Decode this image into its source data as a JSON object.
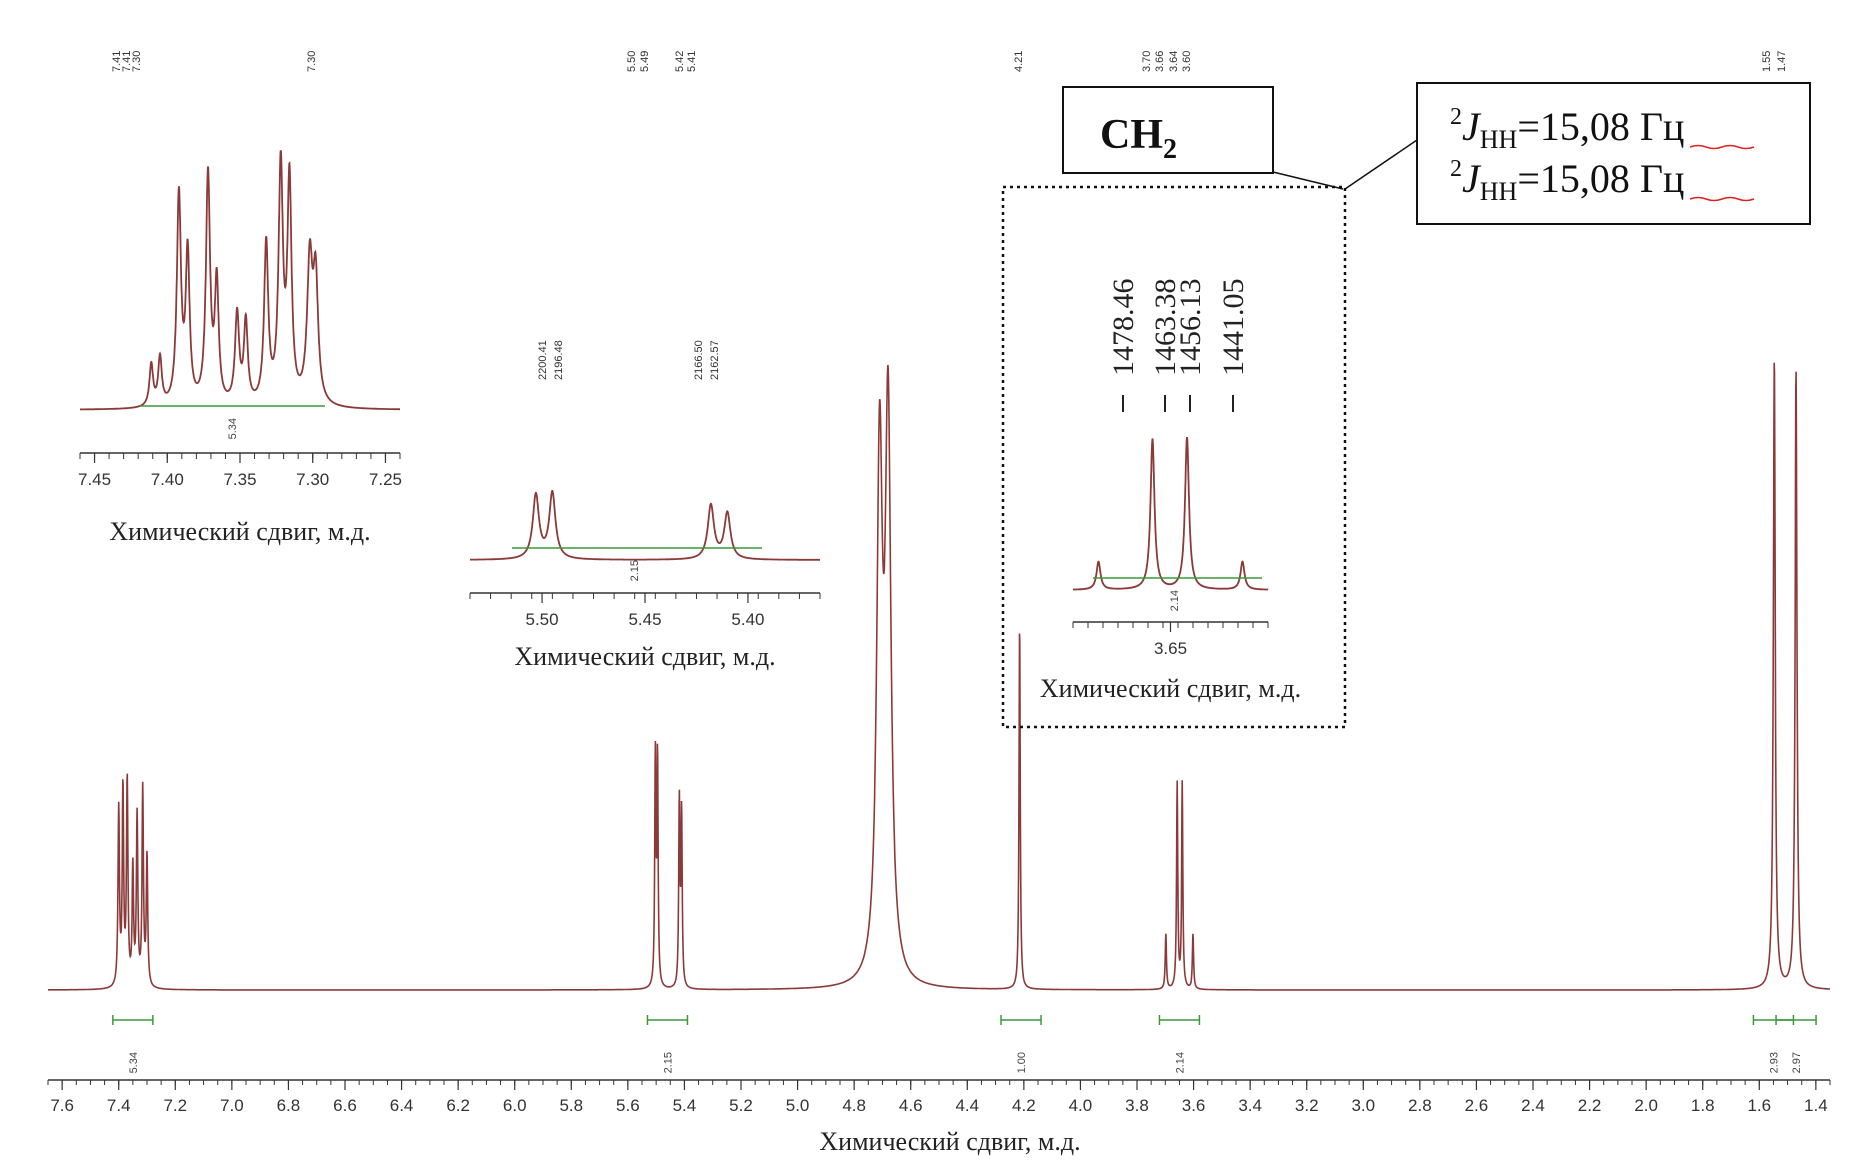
{
  "chart_data": {
    "type": "line",
    "xlabel": "Химический сдвиг, м.д.",
    "x_range": [
      7.65,
      1.35
    ],
    "x_reversed": true,
    "x_ticks": [
      "7.6",
      "7.4",
      "7.2",
      "7.0",
      "6.8",
      "6.6",
      "6.4",
      "6.2",
      "6.0",
      "5.8",
      "5.6",
      "5.4",
      "5.2",
      "5.0",
      "4.8",
      "4.6",
      "4.4",
      "4.2",
      "4.0",
      "3.8",
      "3.6",
      "3.4",
      "3.2",
      "3.0",
      "2.8",
      "2.6",
      "2.4",
      "2.2",
      "2.0",
      "1.8",
      "1.6",
      "1.4"
    ],
    "peak_labels": [
      "7.41",
      "7.41",
      "7.30",
      "7.30",
      "5.50",
      "5.49",
      "5.42",
      "5.41",
      "4.21",
      "3.70",
      "3.66",
      "3.64",
      "3.60",
      "1.55",
      "1.47"
    ],
    "integrals": [
      {
        "center": 7.35,
        "value": "5.34"
      },
      {
        "center": 5.46,
        "value": "2.15"
      },
      {
        "center": 4.21,
        "value": "1.00"
      },
      {
        "center": 3.65,
        "value": "2.14"
      },
      {
        "center": 1.55,
        "value": "2.93"
      },
      {
        "center": 1.47,
        "value": "2.97"
      }
    ],
    "peaks": [
      {
        "ppm": 4.68,
        "height": 1.4,
        "width": 0.012
      },
      {
        "ppm": 4.71,
        "height": 1.3,
        "width": 0.012
      },
      {
        "ppm": 4.215,
        "height": 0.93,
        "width": 0.0025
      },
      {
        "ppm": 5.503,
        "height": 0.58,
        "width": 0.0025
      },
      {
        "ppm": 5.495,
        "height": 0.58,
        "width": 0.0025
      },
      {
        "ppm": 5.418,
        "height": 0.47,
        "width": 0.0025
      },
      {
        "ppm": 5.41,
        "height": 0.44,
        "width": 0.0025
      },
      {
        "ppm": 7.4,
        "height": 0.45,
        "width": 0.003
      },
      {
        "ppm": 7.385,
        "height": 0.5,
        "width": 0.003
      },
      {
        "ppm": 7.37,
        "height": 0.52,
        "width": 0.003
      },
      {
        "ppm": 7.35,
        "height": 0.3,
        "width": 0.003
      },
      {
        "ppm": 7.335,
        "height": 0.43,
        "width": 0.003
      },
      {
        "ppm": 7.315,
        "height": 0.5,
        "width": 0.003
      },
      {
        "ppm": 7.3,
        "height": 0.33,
        "width": 0.003
      },
      {
        "ppm": 3.698,
        "height": 0.14,
        "width": 0.0025
      },
      {
        "ppm": 3.658,
        "height": 0.52,
        "width": 0.0025
      },
      {
        "ppm": 3.64,
        "height": 0.52,
        "width": 0.0025
      },
      {
        "ppm": 3.602,
        "height": 0.14,
        "width": 0.0025
      },
      {
        "ppm": 1.547,
        "height": 1.6,
        "width": 0.004
      },
      {
        "ppm": 1.47,
        "height": 1.57,
        "width": 0.004
      }
    ],
    "insets": [
      {
        "name": "aromatic",
        "xlabel": "Химический сдвиг, м.д.",
        "ticks": [
          "7.45",
          "7.40",
          "7.35",
          "7.30",
          "7.25"
        ],
        "integral": "5.34"
      },
      {
        "name": "vinyl",
        "xlabel": "Химический сдвиг, м.д.",
        "ticks": [
          "5.50",
          "5.45",
          "5.40"
        ],
        "integral": "2.15",
        "freq_labels": [
          "2200.41",
          "2196.48",
          "2166.50",
          "2162.57"
        ]
      },
      {
        "name": "ch2",
        "xlabel": "Химический сдвиг, м.д.",
        "ticks": [
          "3.65"
        ],
        "integral": "2.14",
        "freq_labels": [
          "1478.46",
          "1463.38",
          "1456.13",
          "1441.05"
        ]
      }
    ]
  },
  "annotations": {
    "ch2_label_main": "CH",
    "ch2_label_sub": "2",
    "coupling_sup": "2",
    "coupling_J": "J",
    "coupling_sub": "НН",
    "coupling_value": "=15,08",
    "coupling_unit": "Гц"
  },
  "colors": {
    "spectrum": "#8b3a3a",
    "integral": "#3a9a3a",
    "axis": "#333333"
  }
}
